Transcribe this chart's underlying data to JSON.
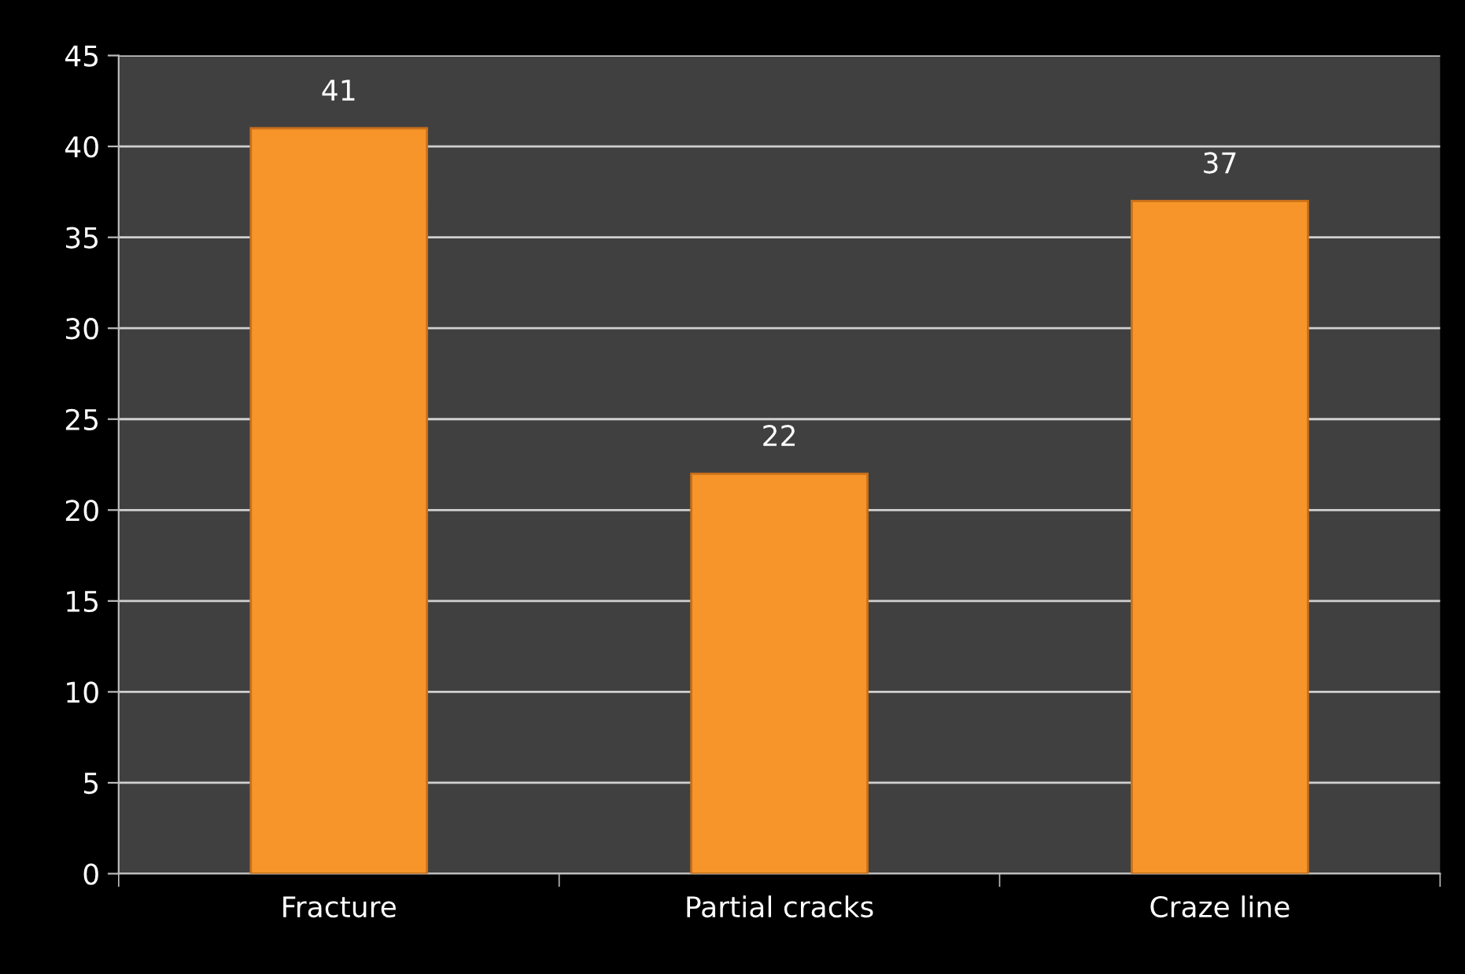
{
  "chart_data": {
    "type": "bar",
    "categories": [
      "Fracture",
      "Partial cracks",
      "Craze line"
    ],
    "values": [
      41,
      22,
      37
    ],
    "color": "#f7952a",
    "ylim": [
      0,
      45
    ],
    "yticks": [
      0,
      5,
      10,
      15,
      20,
      25,
      30,
      35,
      40,
      45
    ],
    "grid": "y",
    "data_labels": true
  }
}
